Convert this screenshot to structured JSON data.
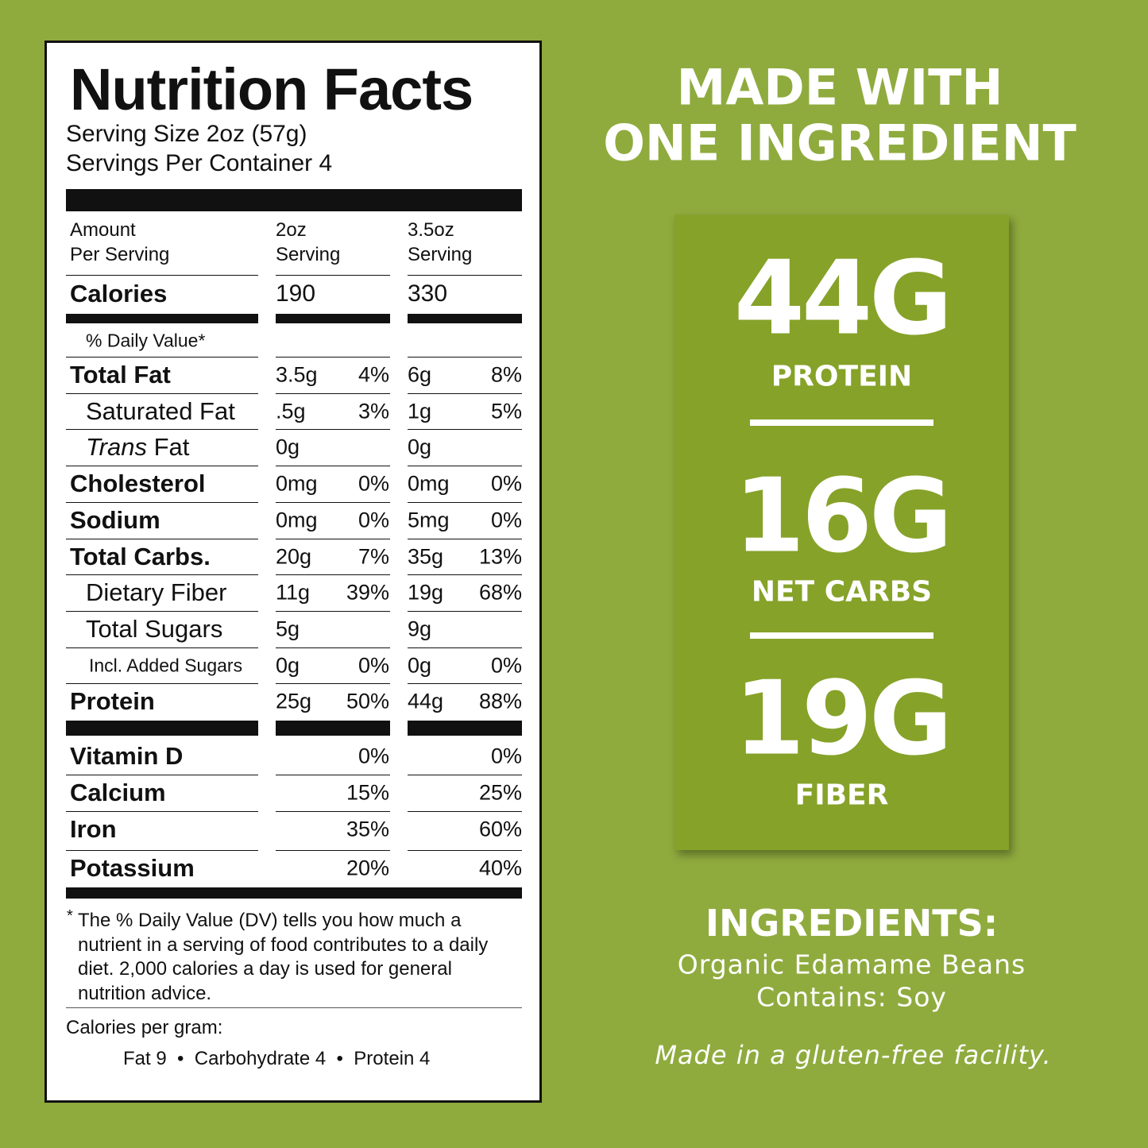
{
  "label": {
    "title": "Nutrition Facts",
    "serving_size": "Serving Size 2oz (57g)",
    "servings_per_container": "Servings Per Container 4",
    "header": [
      [
        "Amount",
        "Per Serving"
      ],
      [
        "2oz",
        "Serving"
      ],
      [
        "3.5oz",
        "Serving"
      ]
    ],
    "calories": {
      "name": "Calories",
      "values": [
        "190",
        "330"
      ]
    },
    "dv_header": "% Daily Value*",
    "rows": [
      {
        "name": "Total Fat",
        "style": "bold",
        "cells": [
          "3.5g",
          "4%",
          "6g",
          "8%"
        ]
      },
      {
        "name": "Saturated Fat",
        "style": "indent",
        "cells": [
          ".5g",
          "3%",
          "1g",
          "5%"
        ]
      },
      {
        "italic": "Trans",
        "name": " Fat",
        "style": "indent",
        "cells": [
          "0g",
          null,
          "0g",
          null
        ]
      },
      {
        "name": "Cholesterol",
        "style": "bold",
        "cells": [
          "0mg",
          "0%",
          "0mg",
          "0%"
        ]
      },
      {
        "name": "Sodium",
        "style": "bold",
        "cells": [
          "0mg",
          "0%",
          "5mg",
          "0%"
        ]
      },
      {
        "name": "Total Carbs.",
        "style": "bold",
        "cells": [
          "20g",
          "7%",
          "35g",
          "13%"
        ]
      },
      {
        "name": "Dietary Fiber",
        "style": "indent",
        "cells": [
          "11g",
          "39%",
          "19g",
          "68%"
        ]
      },
      {
        "name": "Total Sugars",
        "style": "indent",
        "cells": [
          "5g",
          null,
          "9g",
          null
        ]
      },
      {
        "name": "Incl. Added Sugars",
        "style": "small",
        "cells": [
          "0g",
          "0%",
          "0g",
          "0%"
        ]
      },
      {
        "name": "Protein",
        "style": "bold",
        "cells": [
          "25g",
          "50%",
          "44g",
          "88%"
        ]
      }
    ],
    "vitamins": [
      {
        "name": "Vitamin D",
        "cells": [
          null,
          "0%",
          null,
          "0%"
        ]
      },
      {
        "name": "Calcium",
        "cells": [
          null,
          "15%",
          null,
          "25%"
        ]
      },
      {
        "name": "Iron",
        "cells": [
          null,
          "35%",
          null,
          "60%"
        ]
      },
      {
        "name": "Potassium",
        "cells": [
          null,
          "20%",
          null,
          "40%"
        ]
      }
    ],
    "footnote_mark": "*",
    "footnote": "The % Daily Value (DV) tells you how much a nutrient in a serving of food contributes to a daily diet. 2,000 calories a day is used for general nutrition advice.",
    "calories_per_gram": "Calories per gram:",
    "per_gram": [
      "Fat 9",
      "Carbohydrate 4",
      "Protein 4"
    ]
  },
  "panel": {
    "heading": [
      "MADE WITH",
      "ONE INGREDIENT"
    ],
    "stats": [
      {
        "value": "44G",
        "label": "PROTEIN"
      },
      {
        "value": "16G",
        "label": "NET CARBS"
      },
      {
        "value": "19G",
        "label": "FIBER"
      }
    ],
    "ingredients_title": "INGREDIENTS:",
    "ingredients": [
      "Organic Edamame Beans",
      "Contains: Soy"
    ],
    "note": "Made in a gluten-free facility."
  }
}
